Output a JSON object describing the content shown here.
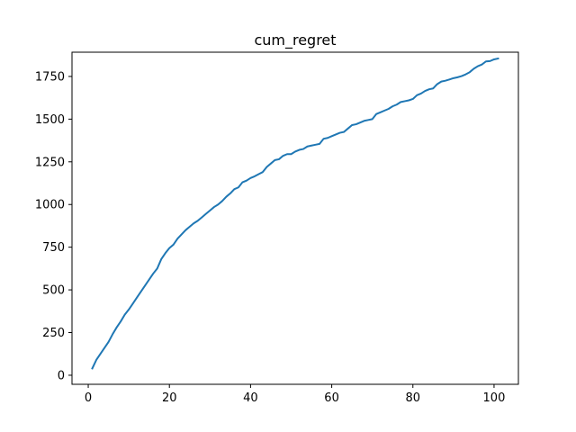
{
  "chart_data": {
    "type": "line",
    "title": "cum_regret",
    "xlabel": "",
    "ylabel": "",
    "xlim": [
      -4.0,
      106.0
    ],
    "ylim": [
      -53.0,
      1892.0
    ],
    "x_ticks": [
      0,
      20,
      40,
      60,
      80,
      100
    ],
    "y_ticks": [
      0,
      250,
      500,
      750,
      1000,
      1250,
      1500,
      1750
    ],
    "grid": false,
    "legend": "none",
    "series": [
      {
        "color": "#1f77b4",
        "x": [
          1,
          2,
          3,
          4,
          5,
          6,
          7,
          8,
          9,
          10,
          11,
          12,
          13,
          14,
          15,
          16,
          17,
          18,
          19,
          20,
          21,
          22,
          23,
          24,
          25,
          26,
          27,
          28,
          29,
          30,
          31,
          32,
          33,
          34,
          35,
          36,
          37,
          38,
          39,
          40,
          41,
          42,
          43,
          44,
          45,
          46,
          47,
          48,
          49,
          50,
          51,
          52,
          53,
          54,
          55,
          56,
          57,
          58,
          59,
          60,
          61,
          62,
          63,
          64,
          65,
          66,
          67,
          68,
          69,
          70,
          71,
          72,
          73,
          74,
          75,
          76,
          77,
          78,
          79,
          80,
          81,
          82,
          83,
          84,
          85,
          86,
          87,
          88,
          89,
          90,
          91,
          92,
          93,
          94,
          95,
          96,
          97,
          98,
          99,
          100,
          101
        ],
        "y": [
          40,
          90,
          125,
          160,
          195,
          240,
          280,
          315,
          355,
          385,
          420,
          455,
          490,
          525,
          560,
          595,
          625,
          680,
          715,
          745,
          765,
          800,
          825,
          850,
          870,
          890,
          905,
          925,
          945,
          965,
          985,
          1000,
          1020,
          1045,
          1065,
          1090,
          1100,
          1130,
          1140,
          1155,
          1165,
          1178,
          1190,
          1220,
          1240,
          1260,
          1265,
          1285,
          1295,
          1295,
          1310,
          1320,
          1325,
          1340,
          1345,
          1350,
          1355,
          1385,
          1390,
          1400,
          1410,
          1420,
          1425,
          1445,
          1465,
          1470,
          1480,
          1490,
          1495,
          1500,
          1530,
          1540,
          1550,
          1560,
          1575,
          1585,
          1600,
          1605,
          1610,
          1618,
          1640,
          1650,
          1665,
          1675,
          1680,
          1705,
          1720,
          1725,
          1732,
          1740,
          1745,
          1752,
          1762,
          1775,
          1795,
          1810,
          1820,
          1838,
          1840,
          1850,
          1855
        ]
      }
    ]
  }
}
